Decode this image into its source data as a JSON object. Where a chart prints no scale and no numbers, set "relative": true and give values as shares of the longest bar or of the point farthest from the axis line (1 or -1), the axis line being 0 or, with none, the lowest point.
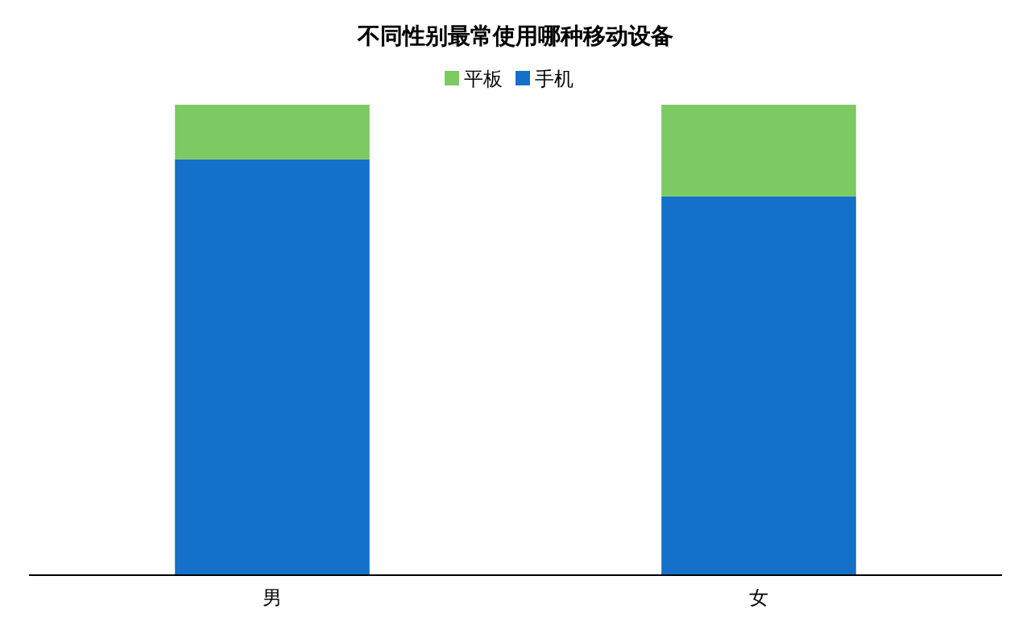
{
  "chart_data": {
    "type": "bar",
    "title": "不同性别最常使用哪种移动设备",
    "categories": [
      "男",
      "女"
    ],
    "stacked": true,
    "relative": true,
    "legend": "top",
    "series": [
      {
        "name": "手机",
        "color": "#1470c8",
        "values": [
          0.884,
          0.805
        ]
      },
      {
        "name": "平板",
        "color": "#7dc962",
        "values": [
          0.116,
          0.195
        ]
      }
    ]
  }
}
